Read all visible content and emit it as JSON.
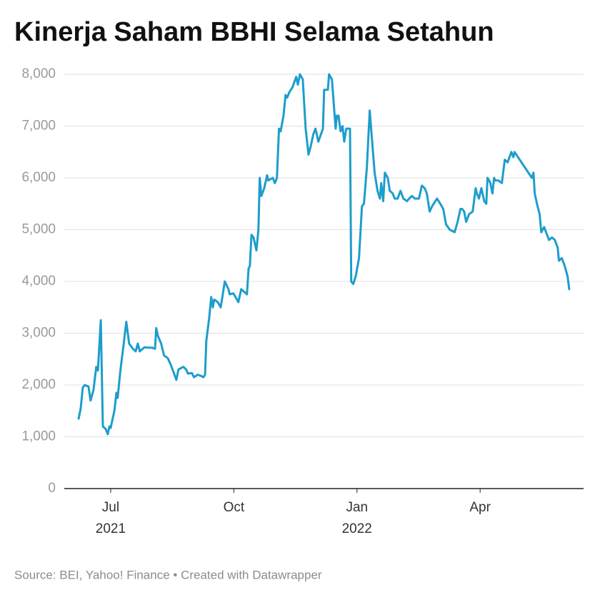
{
  "chart_data": {
    "type": "line",
    "title": "Kinerja Saham BBHI Selama Setahun",
    "source": "Source: BEI, Yahoo! Finance • Created with Datawrapper",
    "xlim": [
      5.87,
      18.52
    ],
    "xticks": [
      {
        "value": 7,
        "label": "Jul",
        "year": "2021"
      },
      {
        "value": 10,
        "label": "Oct"
      },
      {
        "value": 13,
        "label": "Jan",
        "year": "2022"
      },
      {
        "value": 16,
        "label": "Apr"
      }
    ],
    "ylim": [
      0,
      8000
    ],
    "yticks": [
      0,
      {
        "value": 1000,
        "label": "1,000"
      },
      {
        "value": 2000,
        "label": "2,000"
      },
      {
        "value": 3000,
        "label": "3,000"
      },
      {
        "value": 4000,
        "label": "4,000"
      },
      {
        "value": 5000,
        "label": "5,000"
      },
      {
        "value": 6000,
        "label": "6,000"
      },
      {
        "value": 7000,
        "label": "7,000"
      },
      {
        "value": 8000,
        "label": "8,000"
      }
    ],
    "grid": true,
    "color": "#1d9dcb",
    "x": [
      6.22,
      6.27,
      6.32,
      6.37,
      6.46,
      6.51,
      6.58,
      6.65,
      6.69,
      6.76,
      6.81,
      6.88,
      6.93,
      6.97,
      7.0,
      7.09,
      7.14,
      7.17,
      7.24,
      7.31,
      7.38,
      7.45,
      7.54,
      7.61,
      7.66,
      7.71,
      7.78,
      7.83,
      7.92,
      8.01,
      8.08,
      8.11,
      8.15,
      8.23,
      8.3,
      8.39,
      8.46,
      8.53,
      8.6,
      8.65,
      8.77,
      8.84,
      8.88,
      8.98,
      9.03,
      9.12,
      9.19,
      9.26,
      9.3,
      9.33,
      9.4,
      9.45,
      9.49,
      9.52,
      9.61,
      9.68,
      9.75,
      9.78,
      9.87,
      9.9,
      9.99,
      10.04,
      10.11,
      10.18,
      10.25,
      10.32,
      10.36,
      10.39,
      10.43,
      10.48,
      10.55,
      10.6,
      10.63,
      10.67,
      10.74,
      10.81,
      10.84,
      10.95,
      11.0,
      11.05,
      11.1,
      11.14,
      11.21,
      11.26,
      11.3,
      11.35,
      11.43,
      11.52,
      11.56,
      11.61,
      11.68,
      11.75,
      11.82,
      11.87,
      11.94,
      11.99,
      12.06,
      12.17,
      12.2,
      12.29,
      12.32,
      12.39,
      12.48,
      12.51,
      12.55,
      12.6,
      12.65,
      12.69,
      12.74,
      12.83,
      12.86,
      12.91,
      12.97,
      13.05,
      13.12,
      13.17,
      13.24,
      13.31,
      13.38,
      13.43,
      13.5,
      13.56,
      13.59,
      13.64,
      13.68,
      13.75,
      13.8,
      13.87,
      13.92,
      13.99,
      14.06,
      14.13,
      14.22,
      14.27,
      14.34,
      14.41,
      14.51,
      14.58,
      14.65,
      14.7,
      14.77,
      14.83,
      14.95,
      15.03,
      15.1,
      15.17,
      15.26,
      15.38,
      15.45,
      15.52,
      15.56,
      15.61,
      15.66,
      15.73,
      15.82,
      15.89,
      15.92,
      15.97,
      16.03,
      16.1,
      16.15,
      16.18,
      16.22,
      16.25,
      16.3,
      16.34,
      16.37,
      16.44,
      16.53,
      16.6,
      16.67,
      16.76,
      16.81,
      16.84,
      17.26,
      17.3,
      17.33,
      17.4,
      17.45,
      17.49,
      17.56,
      17.63,
      17.68,
      17.75,
      17.82,
      17.89,
      17.92,
      17.99,
      18.06,
      18.13,
      18.17
    ],
    "values": [
      1350,
      1550,
      1950,
      2000,
      1970,
      1700,
      1900,
      2350,
      2280,
      3250,
      1200,
      1150,
      1050,
      1200,
      1170,
      1500,
      1850,
      1750,
      2300,
      2750,
      3220,
      2800,
      2700,
      2650,
      2800,
      2650,
      2700,
      2730,
      2720,
      2720,
      2700,
      3100,
      2950,
      2800,
      2570,
      2520,
      2400,
      2250,
      2100,
      2300,
      2350,
      2300,
      2220,
      2230,
      2150,
      2200,
      2180,
      2150,
      2200,
      2850,
      3300,
      3700,
      3500,
      3650,
      3600,
      3500,
      3850,
      4000,
      3850,
      3750,
      3770,
      3700,
      3600,
      3850,
      3800,
      3750,
      4250,
      4300,
      4900,
      4850,
      4600,
      5000,
      6000,
      5650,
      5800,
      6050,
      5950,
      6000,
      5900,
      6000,
      6950,
      6900,
      7200,
      7600,
      7550,
      7650,
      7750,
      7950,
      7800,
      8000,
      7900,
      6950,
      6450,
      6600,
      6850,
      6950,
      6700,
      6950,
      7700,
      7700,
      8000,
      7900,
      6950,
      7200,
      7200,
      6900,
      7000,
      6700,
      6950,
      6950,
      4000,
      3950,
      4100,
      4450,
      5450,
      5500,
      6200,
      7300,
      6600,
      6100,
      5750,
      5600,
      5900,
      5550,
      6100,
      6000,
      5750,
      5700,
      5600,
      5600,
      5750,
      5600,
      5550,
      5600,
      5650,
      5600,
      5600,
      5850,
      5800,
      5700,
      5350,
      5450,
      5600,
      5500,
      5400,
      5100,
      5000,
      4950,
      5150,
      5400,
      5400,
      5350,
      5150,
      5300,
      5350,
      5800,
      5700,
      5600,
      5800,
      5550,
      5500,
      6000,
      5950,
      5900,
      5700,
      6000,
      5950,
      5950,
      5900,
      6350,
      6300,
      6500,
      6400,
      6500,
      6000,
      6100,
      5700,
      5450,
      5300,
      4950,
      5050,
      4900,
      4800,
      4850,
      4800,
      4650,
      4400,
      4450,
      4300,
      4100,
      3850
    ]
  }
}
